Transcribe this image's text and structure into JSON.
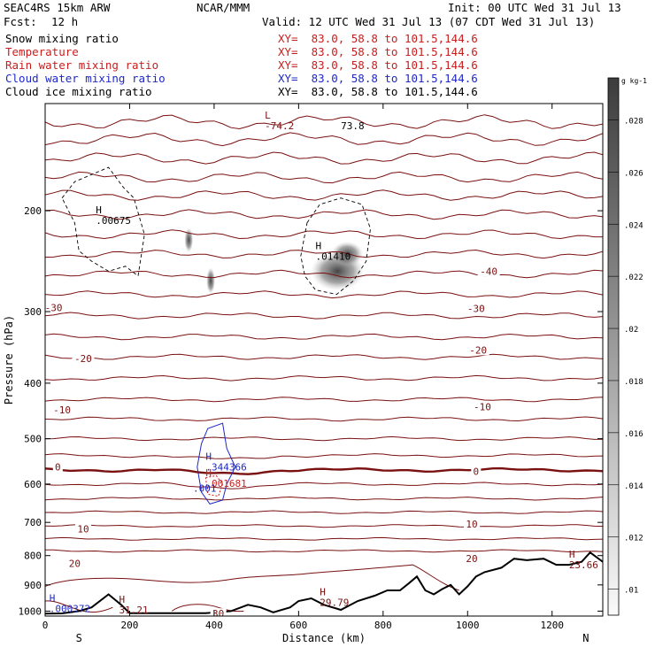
{
  "header": {
    "model": "SEAC4RS 15km ARW",
    "org": "NCAR/MMM",
    "init": "Init: 00 UTC Wed 31 Jul 13",
    "fcst_label": "Fcst:",
    "fcst_value": "12 h",
    "valid": "Valid: 12 UTC Wed 31 Jul 13 (07 CDT Wed 31 Jul 13)"
  },
  "fields": [
    {
      "name": "Snow mixing ratio",
      "xy": "XY=  83.0, 58.8 to 101.5,144.6",
      "color": "#000000"
    },
    {
      "name": "Temperature",
      "xy": "XY=  83.0, 58.8 to 101.5,144.6",
      "color": "#c81e1e"
    },
    {
      "name": "Rain water mixing ratio",
      "xy": "XY=  83.0, 58.8 to 101.5,144.6",
      "color": "#c81e1e"
    },
    {
      "name": "Cloud water mixing ratio",
      "xy": "XY=  83.0, 58.8 to 101.5,144.6",
      "color": "#1e28c8"
    },
    {
      "name": "Cloud ice mixing ratio",
      "xy": "XY=  83.0, 58.8 to 101.5,144.6",
      "color": "#000000"
    }
  ],
  "colors": {
    "temperature": "#7a1010",
    "cloud_water": "#1e28c8",
    "rain_water": "#c81e1e",
    "terrain": "#000000"
  },
  "chart_data": {
    "type": "contour",
    "xlabel": "Distance (km)",
    "ylabel": "Pressure (hPa)",
    "xlim": [
      0,
      1320
    ],
    "ylim": [
      1020,
      130
    ],
    "y_log": true,
    "x_ticks": [
      0,
      200,
      400,
      600,
      800,
      1000,
      1200
    ],
    "x_tick_labels": [
      "0",
      "200",
      "400",
      "600",
      "800",
      "1000",
      "1200"
    ],
    "y_ticks": [
      200,
      300,
      400,
      500,
      600,
      700,
      800,
      900,
      1000
    ],
    "y_tick_labels": [
      "200",
      "300",
      "400",
      "500",
      "600",
      "700",
      "800",
      "900",
      "1000"
    ],
    "start_label": "S",
    "end_label": "N",
    "colorbar": {
      "unit": "g kg-1",
      "ticks": [
        ".01",
        ".012",
        ".014",
        ".016",
        ".018",
        ".02",
        ".022",
        ".024",
        ".026",
        ".028"
      ]
    },
    "temperature_labels": [
      {
        "text": "-30",
        "x": 20,
        "p": 295
      },
      {
        "text": "-20",
        "x": 90,
        "p": 362
      },
      {
        "text": "-10",
        "x": 40,
        "p": 445
      },
      {
        "text": "0",
        "x": 30,
        "p": 560
      },
      {
        "text": "10",
        "x": 90,
        "p": 718
      },
      {
        "text": "20",
        "x": 70,
        "p": 825
      },
      {
        "text": "30",
        "x": 410,
        "p": 1010
      },
      {
        "text": "-40",
        "x": 1050,
        "p": 255
      },
      {
        "text": "-30",
        "x": 1020,
        "p": 296
      },
      {
        "text": "-20",
        "x": 1025,
        "p": 350
      },
      {
        "text": "-10",
        "x": 1035,
        "p": 440
      },
      {
        "text": "0",
        "x": 1020,
        "p": 570
      },
      {
        "text": "10",
        "x": 1010,
        "p": 705
      },
      {
        "text": "20",
        "x": 1010,
        "p": 810
      }
    ],
    "extrema": [
      {
        "mark": "H",
        "value": ".00675",
        "x": 120,
        "p": 208,
        "color": "#000000"
      },
      {
        "mark": "H",
        "value": ".01410",
        "x": 640,
        "p": 240,
        "color": "#000000"
      },
      {
        "mark": "L",
        "value": "-74.2",
        "x": 520,
        "p": 142,
        "color": "#7a1010"
      },
      {
        "mark": "",
        "value": "73.8",
        "x": 700,
        "p": 142,
        "color": "#000000"
      },
      {
        "mark": "H",
        "value": ".344366",
        "x": 380,
        "p": 560,
        "color": "#1e28c8"
      },
      {
        "mark": "H",
        "value": ".001681",
        "x": 380,
        "p": 598,
        "color": "#c81e1e"
      },
      {
        "mark": "",
        "value": ".001",
        "x": 350,
        "p": 610,
        "color": "#1e28c8"
      },
      {
        "mark": "H",
        "value": ".000372",
        "x": 10,
        "p": 990,
        "color": "#1e28c8"
      },
      {
        "mark": "H",
        "value": "31.21",
        "x": 175,
        "p": 995,
        "color": "#7a1010"
      },
      {
        "mark": "H",
        "value": "29.79",
        "x": 650,
        "p": 965,
        "color": "#7a1010"
      },
      {
        "mark": "H",
        "value": "23.66",
        "x": 1240,
        "p": 830,
        "color": "#7a1010"
      }
    ],
    "terrain_surface": {
      "x": [
        0,
        40,
        80,
        110,
        150,
        180,
        200,
        260,
        320,
        380,
        440,
        480,
        510,
        540,
        580,
        600,
        630,
        660,
        700,
        740,
        780,
        810,
        840,
        860,
        880,
        900,
        920,
        940,
        960,
        980,
        1000,
        1020,
        1040,
        1080,
        1110,
        1140,
        1180,
        1210,
        1240,
        1270,
        1290,
        1300,
        1320
      ],
      "p": [
        1010,
        1009,
        1000,
        985,
        935,
        975,
        1008,
        1008,
        1008,
        1008,
        1000,
        975,
        985,
        1005,
        985,
        960,
        950,
        975,
        995,
        960,
        940,
        920,
        920,
        895,
        870,
        920,
        935,
        915,
        900,
        935,
        905,
        870,
        855,
        840,
        810,
        815,
        810,
        830,
        830,
        820,
        790,
        800,
        820
      ]
    },
    "temperature_isotherms_C": [
      -70,
      -60,
      -50,
      -40,
      -30,
      -20,
      -10,
      0,
      10,
      20,
      30
    ],
    "freezing_level_hPa": 565,
    "heavy_contour": 0
  }
}
